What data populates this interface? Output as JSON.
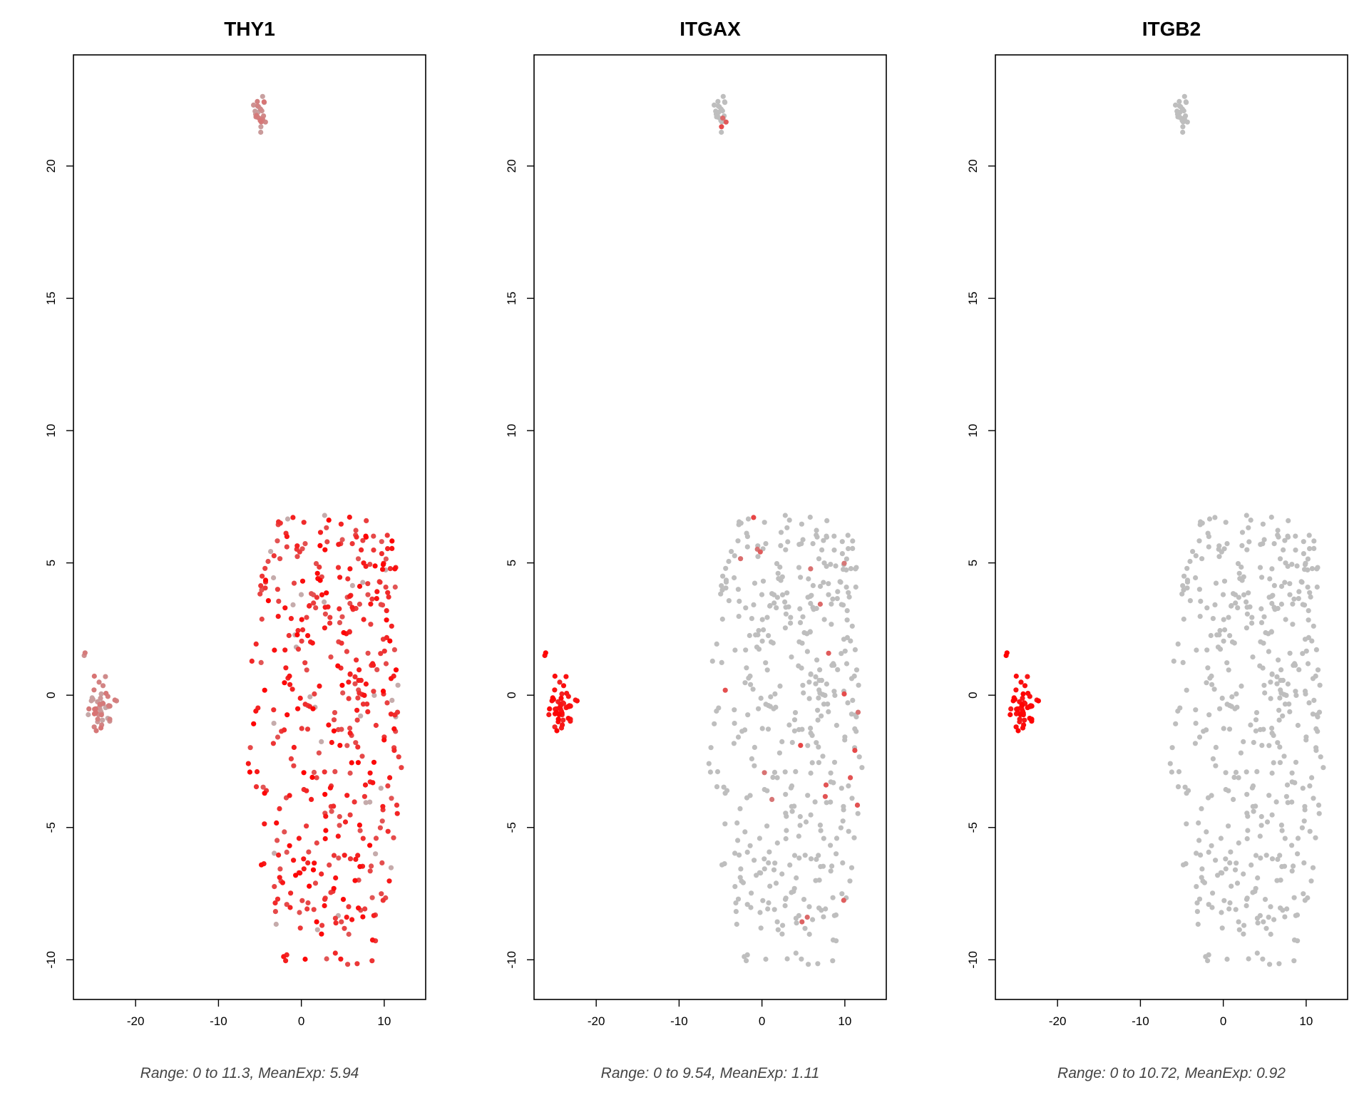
{
  "colors": {
    "low": "#bebebe",
    "high": "#ff0000",
    "frame": "#000000"
  },
  "chart_data": [
    {
      "type": "scatter",
      "title": "THY1",
      "subtitle": "Range: 0 to 11.3, MeanExp: 5.94",
      "xlim": [
        -27.5,
        15
      ],
      "ylim": [
        -11.5,
        24.2
      ],
      "xticks": [
        -20,
        -10,
        0,
        10
      ],
      "yticks": [
        -10,
        -5,
        0,
        5,
        10,
        15,
        20
      ],
      "pattern": "main-high",
      "seed": 11
    },
    {
      "type": "scatter",
      "title": "ITGAX",
      "subtitle": "Range: 0 to 9.54, MeanExp: 1.11",
      "xlim": [
        -27.5,
        15
      ],
      "ylim": [
        -11.5,
        24.2
      ],
      "xticks": [
        -20,
        -10,
        0,
        10
      ],
      "yticks": [
        -10,
        -5,
        0,
        5,
        10,
        15,
        20
      ],
      "pattern": "left-high-sparse",
      "seed": 23
    },
    {
      "type": "scatter",
      "title": "ITGB2",
      "subtitle": "Range: 0 to 10.72, MeanExp: 0.92",
      "xlim": [
        -27.5,
        15
      ],
      "ylim": [
        -11.5,
        24.2
      ],
      "xticks": [
        -20,
        -10,
        0,
        10
      ],
      "yticks": [
        -10,
        -5,
        0,
        5,
        10,
        15,
        20
      ],
      "pattern": "left-high",
      "seed": 37
    }
  ]
}
